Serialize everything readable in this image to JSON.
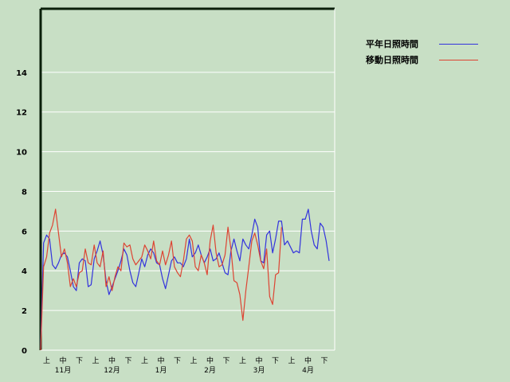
{
  "chart_data": {
    "type": "line",
    "title": "",
    "xlabel": "",
    "ylabel": "",
    "ylim": [
      0,
      17.2
    ],
    "yticks": [
      0,
      2,
      4,
      6,
      8,
      10,
      12,
      14
    ],
    "grid": true,
    "legend_position": "top-right",
    "background": "#c8dfc5",
    "months": [
      "11月",
      "12月",
      "1月",
      "2月",
      "3月",
      "4月"
    ],
    "periods": [
      "上",
      "中",
      "下"
    ],
    "series": [
      {
        "name": "平年日照時間",
        "color": "#3333dd",
        "values": [
          0.1,
          5.4,
          5.8,
          5.6,
          4.3,
          4.1,
          4.4,
          4.8,
          4.9,
          4.7,
          4.0,
          3.2,
          3.0,
          4.4,
          4.6,
          4.5,
          3.2,
          3.3,
          4.6,
          5.0,
          5.5,
          4.8,
          3.5,
          2.8,
          3.2,
          3.6,
          4.0,
          4.5,
          5.1,
          4.8,
          4.0,
          3.4,
          3.2,
          3.9,
          4.6,
          4.2,
          4.8,
          5.1,
          4.9,
          4.4,
          4.3,
          3.6,
          3.1,
          3.8,
          4.5,
          4.7,
          4.4,
          4.4,
          4.2,
          4.6,
          5.6,
          4.7,
          4.9,
          5.3,
          4.8,
          4.4,
          4.7,
          5.1,
          4.5,
          4.6,
          4.9,
          4.4,
          3.9,
          3.8,
          5.0,
          5.6,
          5.0,
          4.5,
          5.6,
          5.3,
          5.1,
          5.8,
          6.6,
          6.2,
          4.5,
          4.4,
          5.8,
          6.0,
          4.9,
          5.6,
          6.5,
          6.5,
          5.3,
          5.5,
          5.2,
          4.9,
          5.0,
          4.9,
          6.6,
          6.6,
          7.1,
          6.0,
          5.3,
          5.1,
          6.4,
          6.2,
          5.5,
          4.5
        ]
      },
      {
        "name": "移動日照時間",
        "color": "#dd4433",
        "values": [
          0.0,
          4.2,
          4.7,
          5.9,
          6.3,
          7.1,
          5.9,
          4.7,
          5.1,
          4.4,
          3.2,
          3.6,
          3.2,
          3.9,
          4.0,
          5.1,
          4.4,
          4.3,
          5.3,
          4.4,
          4.2,
          5.0,
          3.2,
          3.7,
          3.0,
          3.7,
          4.2,
          4.0,
          5.4,
          5.2,
          5.3,
          4.6,
          4.3,
          4.5,
          4.7,
          5.3,
          5.0,
          4.6,
          5.5,
          4.5,
          4.3,
          5.0,
          4.3,
          4.8,
          5.5,
          4.2,
          3.9,
          3.7,
          4.5,
          5.6,
          5.8,
          5.5,
          4.2,
          4.0,
          4.8,
          4.4,
          3.8,
          5.5,
          6.3,
          4.9,
          4.2,
          4.3,
          4.8,
          6.2,
          5.1,
          3.5,
          3.4,
          2.8,
          1.5,
          3.0,
          4.2,
          5.5,
          5.9,
          5.3,
          4.5,
          4.1,
          5.1,
          2.7,
          2.3,
          3.8,
          3.9,
          6.2
        ]
      }
    ]
  }
}
